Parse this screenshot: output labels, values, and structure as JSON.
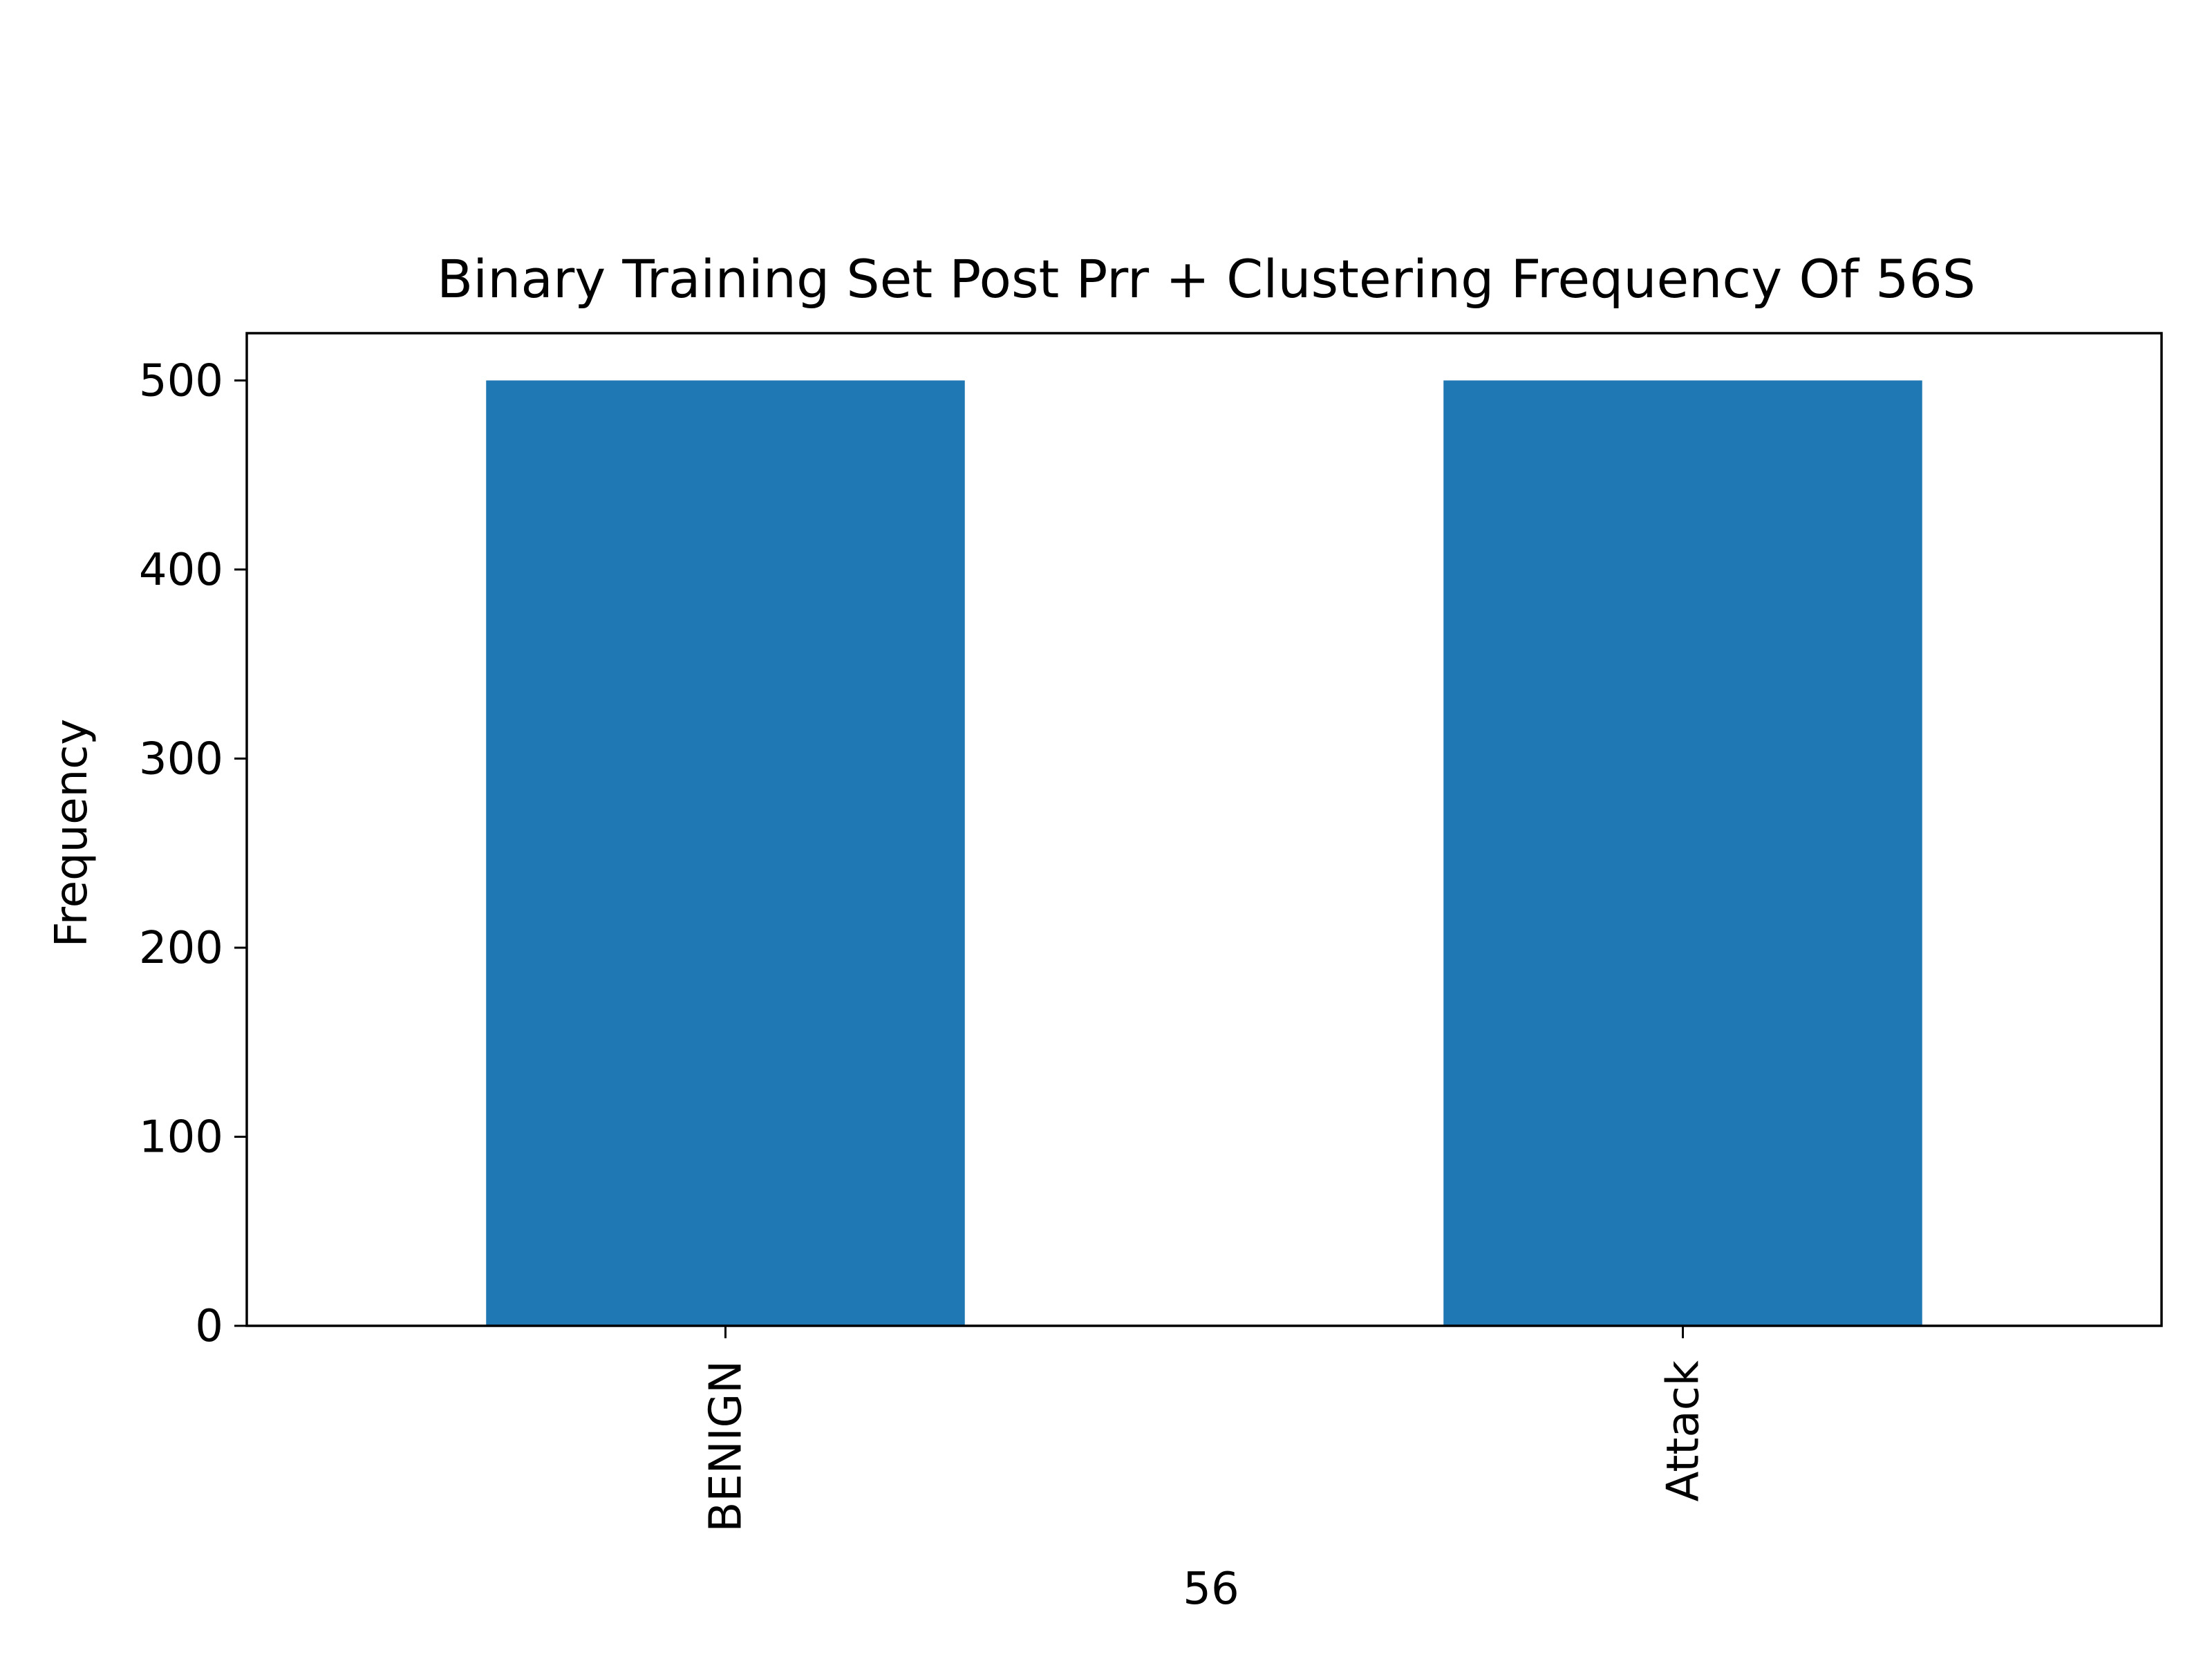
{
  "chart_data": {
    "type": "bar",
    "title": "Binary Training Set Post Prr + Clustering  Frequency Of  56S",
    "xlabel": "56",
    "ylabel": "Frequency",
    "categories": [
      "BENIGN",
      "Attack"
    ],
    "values": [
      500,
      500
    ],
    "ylim": [
      0,
      525
    ],
    "yticks": [
      0,
      100,
      200,
      300,
      400,
      500
    ],
    "grid": false,
    "legend": "none",
    "bar_color": "#1f77b4",
    "axis_color": "#000000"
  }
}
